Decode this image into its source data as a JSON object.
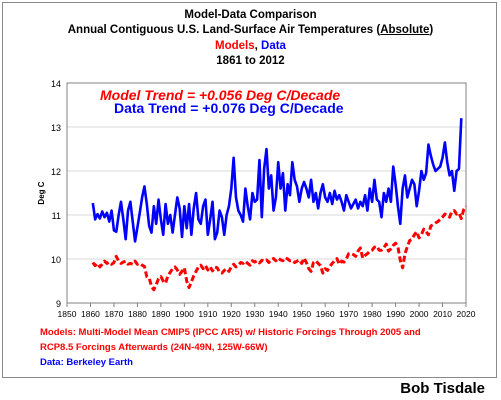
{
  "title": {
    "line1": "Model-Data Comparison",
    "line2_pre": "Annual Contiguous U.S. Land-Surface Air Temperatures (",
    "line2_abs": "Absolute",
    "line2_post": ")",
    "line3_models": "Models",
    "line3_sep": ", ",
    "line3_data": "Data",
    "line4": "1861 to 2012"
  },
  "annotations": {
    "model_trend": "Model Trend = +0.056 Deg C/Decade",
    "data_trend": "Data Trend = +0.076 Deg C/Decade"
  },
  "notes": {
    "models_line1": "Models: Multi-Model Mean CMIP5 (IPCC AR5) w/ Historic Forcings Through 2005 and",
    "models_line2": "RCP8.5 Forcings Afterwards (24N-49N, 125W-66W)",
    "data": "Data: Berkeley Earth"
  },
  "credit": "Bob Tisdale",
  "colors": {
    "model": "#ff0000",
    "data": "#0000ff",
    "grid": "#d9d9d9",
    "axis": "#808080"
  },
  "chart_data": {
    "type": "line",
    "ylabel": "Deg C",
    "xlabel": "",
    "xlim": [
      1850,
      2020
    ],
    "ylim": [
      9,
      14
    ],
    "xticks": [
      "1850",
      "1860",
      "1870",
      "1880",
      "1890",
      "1900",
      "1910",
      "1920",
      "1930",
      "1940",
      "1950",
      "1960",
      "1970",
      "1980",
      "1990",
      "2000",
      "2010",
      "2020"
    ],
    "yticks": [
      "9",
      "10",
      "11",
      "12",
      "13",
      "14"
    ],
    "grid": true,
    "series": [
      {
        "name": "Models",
        "style": "dashed",
        "x_start": 1861,
        "values": [
          9.92,
          9.85,
          9.9,
          9.82,
          9.88,
          9.95,
          9.9,
          9.93,
          9.88,
          9.92,
          10.06,
          9.95,
          9.9,
          9.93,
          9.95,
          9.88,
          9.9,
          9.88,
          9.95,
          9.88,
          9.9,
          9.86,
          9.83,
          9.6,
          9.57,
          9.38,
          9.3,
          9.42,
          9.55,
          9.6,
          9.5,
          9.45,
          9.62,
          9.7,
          9.78,
          9.82,
          9.75,
          9.65,
          9.72,
          9.8,
          9.5,
          9.35,
          9.48,
          9.62,
          9.72,
          9.82,
          9.86,
          9.78,
          9.85,
          9.75,
          9.82,
          9.73,
          9.82,
          9.8,
          9.7,
          9.68,
          9.74,
          9.78,
          9.72,
          9.82,
          9.88,
          9.82,
          9.86,
          9.92,
          9.9,
          9.95,
          9.9,
          9.86,
          9.96,
          9.93,
          9.96,
          9.91,
          9.97,
          9.95,
          9.98,
          9.92,
          9.99,
          10.01,
          9.96,
          10.02,
          9.98,
          9.96,
          10.03,
          10.0,
          9.96,
          9.97,
          9.92,
          9.95,
          9.98,
          9.9,
          10.02,
          9.92,
          9.78,
          9.72,
          9.92,
          9.96,
          9.9,
          9.85,
          9.68,
          9.78,
          9.74,
          9.83,
          9.9,
          9.96,
          10.01,
          9.88,
          9.95,
          9.93,
          10.0,
          10.12,
          10.13,
          10.1,
          10.06,
          10.18,
          10.25,
          10.02,
          10.08,
          10.12,
          10.18,
          10.2,
          10.27,
          10.29,
          10.2,
          10.2,
          10.25,
          10.34,
          10.18,
          10.23,
          10.31,
          10.36,
          10.27,
          9.97,
          9.8,
          10.12,
          10.28,
          10.42,
          10.45,
          10.55,
          10.62,
          10.48,
          10.55,
          10.68,
          10.62,
          10.55,
          10.75,
          10.78,
          10.82,
          10.85,
          10.9,
          10.95,
          11.02,
          11.0,
          10.95,
          11.08,
          11.1,
          11.02,
          11.05,
          10.92,
          11.12,
          11.2
        ]
      },
      {
        "name": "Data",
        "style": "solid",
        "x_start": 1861,
        "values": [
          11.27,
          10.9,
          11.02,
          10.92,
          11.08,
          10.95,
          11.05,
          10.85,
          11.1,
          10.65,
          10.62,
          11.0,
          11.3,
          10.9,
          10.45,
          11.1,
          11.3,
          10.85,
          10.4,
          10.72,
          11.05,
          11.4,
          11.65,
          11.25,
          10.75,
          10.6,
          11.2,
          10.8,
          11.35,
          10.9,
          10.55,
          11.25,
          10.8,
          11.0,
          10.6,
          11.0,
          11.4,
          11.15,
          10.5,
          11.2,
          10.7,
          11.25,
          10.55,
          11.15,
          11.5,
          10.9,
          10.8,
          11.2,
          11.35,
          10.55,
          10.9,
          11.3,
          10.45,
          10.6,
          11.1,
          10.95,
          10.55,
          11.0,
          11.2,
          11.6,
          12.3,
          11.4,
          11.1,
          11.0,
          10.85,
          11.6,
          11.2,
          10.9,
          11.5,
          11.3,
          11.35,
          12.25,
          10.95,
          12.05,
          12.5,
          11.6,
          11.9,
          11.1,
          11.4,
          12.2,
          11.6,
          11.95,
          11.1,
          11.7,
          11.45,
          12.2,
          11.8,
          11.65,
          11.3,
          11.6,
          11.75,
          11.6,
          11.4,
          11.8,
          11.3,
          11.5,
          11.15,
          11.5,
          11.7,
          11.4,
          11.3,
          11.5,
          11.25,
          11.55,
          11.35,
          11.45,
          11.3,
          11.1,
          11.45,
          11.3,
          11.15,
          11.25,
          11.35,
          11.15,
          11.3,
          11.2,
          11.45,
          11.1,
          11.6,
          11.3,
          11.8,
          11.35,
          11.3,
          10.95,
          11.5,
          11.3,
          11.6,
          11.3,
          12.1,
          11.7,
          11.2,
          10.8,
          11.6,
          11.9,
          11.4,
          11.6,
          11.8,
          11.7,
          11.2,
          11.55,
          12.0,
          11.8,
          11.95,
          12.6,
          12.35,
          12.15,
          12.0,
          12.05,
          12.1,
          12.3,
          12.65,
          12.2,
          11.9,
          12.0,
          11.55,
          12.0,
          12.05,
          13.2
        ]
      }
    ]
  }
}
